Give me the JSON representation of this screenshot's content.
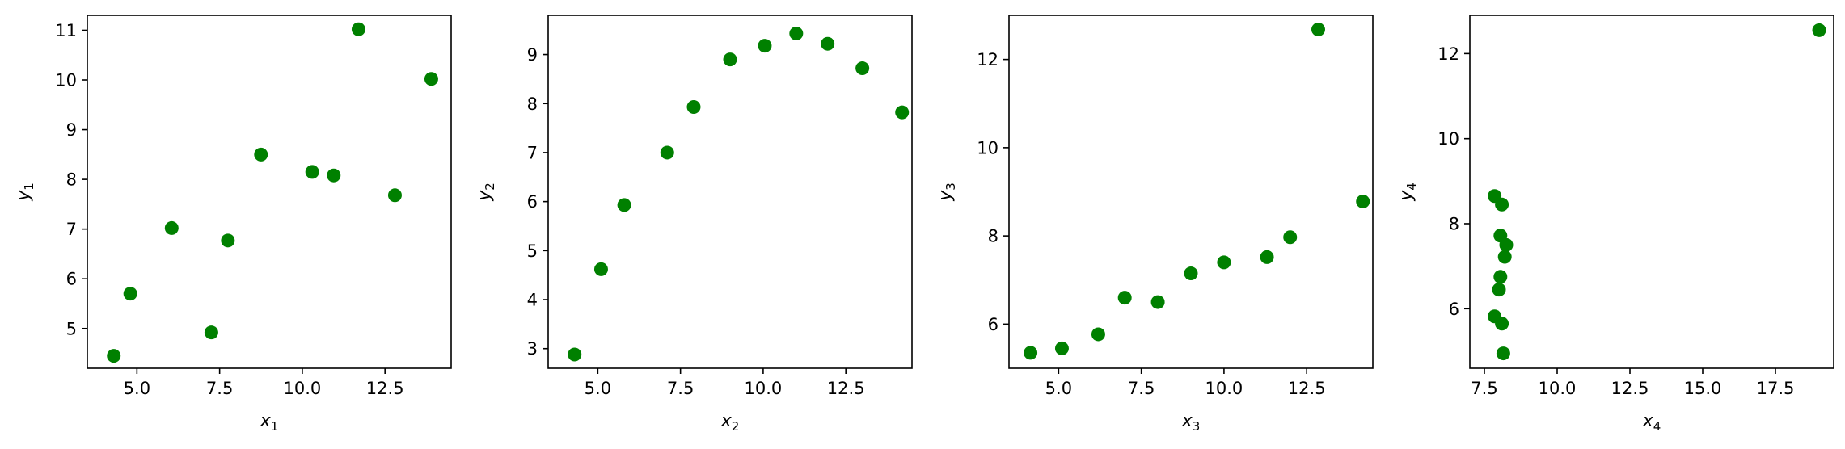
{
  "chart_data": [
    {
      "type": "scatter",
      "xlabel": "x",
      "xlabel_sub": "1",
      "ylabel": "y",
      "ylabel_sub": "1",
      "color": "#008000",
      "xlim": [
        3.5,
        14.5
      ],
      "ylim": [
        4.2,
        11.3
      ],
      "xticks": [
        5.0,
        7.5,
        10.0,
        12.5
      ],
      "xtick_labels": [
        "5.0",
        "7.5",
        "10.0",
        "12.5"
      ],
      "yticks": [
        5,
        6,
        7,
        8,
        9,
        10,
        11
      ],
      "ytick_labels": [
        "5",
        "6",
        "7",
        "8",
        "9",
        "10",
        "11"
      ],
      "points": [
        [
          4.3,
          4.45
        ],
        [
          4.8,
          5.7
        ],
        [
          6.05,
          7.02
        ],
        [
          7.25,
          4.92
        ],
        [
          7.75,
          6.77
        ],
        [
          8.75,
          8.5
        ],
        [
          10.3,
          8.15
        ],
        [
          10.95,
          8.08
        ],
        [
          11.7,
          11.02
        ],
        [
          12.8,
          7.68
        ],
        [
          13.9,
          10.02
        ]
      ]
    },
    {
      "type": "scatter",
      "xlabel": "x",
      "xlabel_sub": "2",
      "ylabel": "y",
      "ylabel_sub": "2",
      "color": "#008000",
      "xlim": [
        3.5,
        14.5
      ],
      "ylim": [
        2.6,
        9.8
      ],
      "xticks": [
        5.0,
        7.5,
        10.0,
        12.5
      ],
      "xtick_labels": [
        "5.0",
        "7.5",
        "10.0",
        "12.5"
      ],
      "yticks": [
        3,
        4,
        5,
        6,
        7,
        8,
        9
      ],
      "ytick_labels": [
        "3",
        "4",
        "5",
        "6",
        "7",
        "8",
        "9"
      ],
      "points": [
        [
          4.3,
          2.88
        ],
        [
          5.1,
          4.62
        ],
        [
          5.8,
          5.93
        ],
        [
          7.1,
          7.0
        ],
        [
          7.9,
          7.93
        ],
        [
          9.0,
          8.9
        ],
        [
          10.05,
          9.18
        ],
        [
          11.0,
          9.43
        ],
        [
          11.95,
          9.22
        ],
        [
          13.0,
          8.72
        ],
        [
          14.2,
          7.82
        ]
      ]
    },
    {
      "type": "scatter",
      "xlabel": "x",
      "xlabel_sub": "3",
      "ylabel": "y",
      "ylabel_sub": "3",
      "color": "#008000",
      "xlim": [
        3.5,
        14.5
      ],
      "ylim": [
        5.0,
        13.0
      ],
      "xticks": [
        5.0,
        7.5,
        10.0,
        12.5
      ],
      "xtick_labels": [
        "5.0",
        "7.5",
        "10.0",
        "12.5"
      ],
      "yticks": [
        6,
        8,
        10,
        12
      ],
      "ytick_labels": [
        "6",
        "8",
        "10",
        "12"
      ],
      "points": [
        [
          4.15,
          5.35
        ],
        [
          5.1,
          5.45
        ],
        [
          6.2,
          5.77
        ],
        [
          7.0,
          6.6
        ],
        [
          8.0,
          6.5
        ],
        [
          9.0,
          7.15
        ],
        [
          10.0,
          7.4
        ],
        [
          11.3,
          7.52
        ],
        [
          12.0,
          7.97
        ],
        [
          12.85,
          12.68
        ],
        [
          14.2,
          8.78
        ]
      ]
    },
    {
      "type": "scatter",
      "xlabel": "x",
      "xlabel_sub": "4",
      "ylabel": "y",
      "ylabel_sub": "4",
      "color": "#008000",
      "xlim": [
        7.0,
        19.5
      ],
      "ylim": [
        4.6,
        12.9
      ],
      "xticks": [
        7.5,
        10.0,
        12.5,
        15.0,
        17.5
      ],
      "xtick_labels": [
        "7.5",
        "10.0",
        "12.5",
        "15.0",
        "17.5"
      ],
      "yticks": [
        6,
        8,
        10,
        12
      ],
      "ytick_labels": [
        "6",
        "8",
        "10",
        "12"
      ],
      "points": [
        [
          7.85,
          8.65
        ],
        [
          7.85,
          5.82
        ],
        [
          8.0,
          6.45
        ],
        [
          8.05,
          7.72
        ],
        [
          8.05,
          6.75
        ],
        [
          8.1,
          8.45
        ],
        [
          8.1,
          5.65
        ],
        [
          8.15,
          4.95
        ],
        [
          8.2,
          7.22
        ],
        [
          8.25,
          7.5
        ],
        [
          19.0,
          12.55
        ]
      ]
    }
  ]
}
